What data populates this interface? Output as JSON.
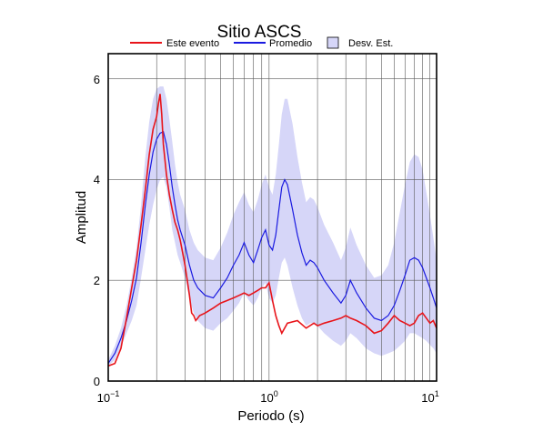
{
  "chart_data": {
    "type": "line",
    "title": "Sitio ASCS",
    "xlabel": "Periodo (s)",
    "ylabel": "Amplitud",
    "xscale": "log",
    "xlim": [
      0.1,
      11
    ],
    "ylim": [
      0,
      6.5
    ],
    "grid": true,
    "legend_position": "top",
    "x_ticks": [
      {
        "value": 0.1,
        "base": "10",
        "exp": "−1"
      },
      {
        "value": 1,
        "base": "10",
        "exp": "0"
      },
      {
        "value": 10,
        "base": "10",
        "exp": "1"
      }
    ],
    "y_ticks": [
      {
        "value": 0,
        "label": "0"
      },
      {
        "value": 2,
        "label": "2"
      },
      {
        "value": 4,
        "label": "4"
      },
      {
        "value": 6,
        "label": "6"
      }
    ],
    "legend": [
      {
        "name": "Este evento",
        "kind": "line",
        "color": "#e8141a"
      },
      {
        "name": "Promedio",
        "kind": "line",
        "color": "#1a1ae0"
      },
      {
        "name": "Desv. Est.",
        "kind": "band",
        "color": "#d6d6f8"
      }
    ],
    "series": [
      {
        "name": "Este evento",
        "color": "#e8141a",
        "x": [
          0.1,
          0.11,
          0.12,
          0.13,
          0.14,
          0.15,
          0.16,
          0.17,
          0.18,
          0.19,
          0.2,
          0.205,
          0.21,
          0.215,
          0.22,
          0.23,
          0.24,
          0.25,
          0.26,
          0.27,
          0.28,
          0.29,
          0.3,
          0.31,
          0.32,
          0.33,
          0.34,
          0.35,
          0.36,
          0.37,
          0.4,
          0.45,
          0.5,
          0.55,
          0.6,
          0.65,
          0.7,
          0.75,
          0.8,
          0.85,
          0.9,
          0.95,
          1.0,
          1.05,
          1.1,
          1.15,
          1.2,
          1.3,
          1.5,
          1.7,
          1.9,
          2.0,
          2.2,
          2.5,
          2.8,
          3.0,
          3.2,
          3.5,
          4.0,
          4.5,
          5.0,
          5.5,
          6.0,
          6.5,
          7.0,
          7.5,
          8.0,
          8.5,
          9.0,
          9.5,
          10.0,
          10.5,
          11.0
        ],
        "y": [
          0.3,
          0.35,
          0.65,
          1.25,
          1.85,
          2.4,
          3.1,
          3.8,
          4.5,
          5.0,
          5.25,
          5.5,
          5.7,
          5.3,
          4.7,
          4.1,
          3.7,
          3.4,
          3.15,
          3.0,
          2.8,
          2.55,
          2.3,
          2.0,
          1.7,
          1.35,
          1.3,
          1.2,
          1.25,
          1.3,
          1.35,
          1.45,
          1.55,
          1.6,
          1.65,
          1.7,
          1.75,
          1.7,
          1.75,
          1.8,
          1.85,
          1.85,
          1.95,
          1.6,
          1.3,
          1.1,
          0.95,
          1.15,
          1.2,
          1.05,
          1.15,
          1.1,
          1.15,
          1.2,
          1.25,
          1.3,
          1.25,
          1.2,
          1.1,
          0.95,
          1.0,
          1.15,
          1.3,
          1.2,
          1.15,
          1.1,
          1.15,
          1.3,
          1.35,
          1.25,
          1.15,
          1.2,
          1.05
        ]
      },
      {
        "name": "Promedio",
        "color": "#1a1ae0",
        "x": [
          0.1,
          0.11,
          0.12,
          0.13,
          0.14,
          0.15,
          0.16,
          0.17,
          0.18,
          0.19,
          0.2,
          0.21,
          0.22,
          0.23,
          0.24,
          0.25,
          0.26,
          0.27,
          0.28,
          0.3,
          0.32,
          0.34,
          0.36,
          0.4,
          0.45,
          0.5,
          0.55,
          0.6,
          0.65,
          0.7,
          0.75,
          0.8,
          0.85,
          0.9,
          0.95,
          1.0,
          1.05,
          1.1,
          1.15,
          1.2,
          1.25,
          1.3,
          1.4,
          1.5,
          1.6,
          1.7,
          1.8,
          1.9,
          2.0,
          2.2,
          2.5,
          2.8,
          3.0,
          3.2,
          3.5,
          4.0,
          4.5,
          5.0,
          5.5,
          6.0,
          6.5,
          7.0,
          7.5,
          8.0,
          8.5,
          9.0,
          9.5,
          10.0,
          10.5,
          11.0
        ],
        "y": [
          0.35,
          0.55,
          0.85,
          1.2,
          1.6,
          2.05,
          2.75,
          3.5,
          4.1,
          4.55,
          4.8,
          4.92,
          4.95,
          4.7,
          4.3,
          3.85,
          3.5,
          3.2,
          3.0,
          2.7,
          2.3,
          2.0,
          1.85,
          1.7,
          1.65,
          1.85,
          2.05,
          2.3,
          2.5,
          2.75,
          2.5,
          2.35,
          2.6,
          2.85,
          3.0,
          2.7,
          2.6,
          2.9,
          3.4,
          3.85,
          4.0,
          3.9,
          3.4,
          2.9,
          2.55,
          2.3,
          2.4,
          2.35,
          2.25,
          2.0,
          1.75,
          1.55,
          1.7,
          2.0,
          1.75,
          1.45,
          1.25,
          1.2,
          1.3,
          1.5,
          1.8,
          2.1,
          2.4,
          2.45,
          2.4,
          2.25,
          2.05,
          1.85,
          1.65,
          1.45
        ]
      }
    ],
    "band": {
      "name": "Desv. Est.",
      "x": [
        0.1,
        0.11,
        0.12,
        0.13,
        0.14,
        0.15,
        0.16,
        0.17,
        0.18,
        0.19,
        0.2,
        0.21,
        0.22,
        0.23,
        0.24,
        0.25,
        0.26,
        0.27,
        0.28,
        0.3,
        0.32,
        0.34,
        0.36,
        0.4,
        0.45,
        0.5,
        0.55,
        0.6,
        0.65,
        0.7,
        0.75,
        0.8,
        0.85,
        0.9,
        0.95,
        1.0,
        1.05,
        1.1,
        1.15,
        1.2,
        1.25,
        1.3,
        1.4,
        1.5,
        1.6,
        1.7,
        1.8,
        1.9,
        2.0,
        2.2,
        2.5,
        2.8,
        3.0,
        3.2,
        3.5,
        4.0,
        4.5,
        5.0,
        5.5,
        6.0,
        6.5,
        7.0,
        7.5,
        8.0,
        8.5,
        9.0,
        9.5,
        10.0,
        10.5,
        11.0
      ],
      "upper": [
        0.42,
        0.7,
        1.05,
        1.5,
        2.05,
        2.65,
        3.5,
        4.45,
        5.15,
        5.6,
        5.8,
        5.85,
        5.85,
        5.6,
        5.2,
        4.75,
        4.3,
        3.95,
        3.7,
        3.4,
        3.0,
        2.75,
        2.6,
        2.45,
        2.4,
        2.65,
        2.95,
        3.3,
        3.55,
        3.75,
        3.5,
        3.35,
        3.6,
        3.9,
        4.1,
        3.85,
        3.7,
        4.1,
        4.7,
        5.3,
        5.6,
        5.6,
        5.1,
        4.45,
        3.95,
        3.55,
        3.65,
        3.6,
        3.45,
        3.1,
        2.75,
        2.4,
        2.65,
        3.05,
        2.7,
        2.3,
        2.05,
        2.1,
        2.3,
        2.75,
        3.35,
        3.9,
        4.35,
        4.5,
        4.45,
        4.2,
        3.75,
        3.3,
        2.85,
        2.4
      ],
      "lower": [
        0.3,
        0.42,
        0.68,
        0.95,
        1.2,
        1.5,
        2.05,
        2.6,
        3.1,
        3.5,
        3.8,
        4.0,
        4.05,
        3.85,
        3.45,
        3.0,
        2.75,
        2.5,
        2.35,
        2.05,
        1.65,
        1.35,
        1.2,
        1.05,
        1.0,
        1.15,
        1.25,
        1.4,
        1.55,
        1.75,
        1.6,
        1.5,
        1.65,
        1.85,
        1.95,
        1.65,
        1.55,
        1.7,
        2.05,
        2.35,
        2.45,
        2.3,
        1.85,
        1.5,
        1.25,
        1.1,
        1.15,
        1.15,
        1.1,
        0.95,
        0.8,
        0.7,
        0.8,
        0.95,
        0.85,
        0.65,
        0.55,
        0.5,
        0.55,
        0.6,
        0.7,
        0.8,
        0.95,
        0.95,
        0.9,
        0.85,
        0.8,
        0.72,
        0.65,
        0.55
      ]
    }
  }
}
